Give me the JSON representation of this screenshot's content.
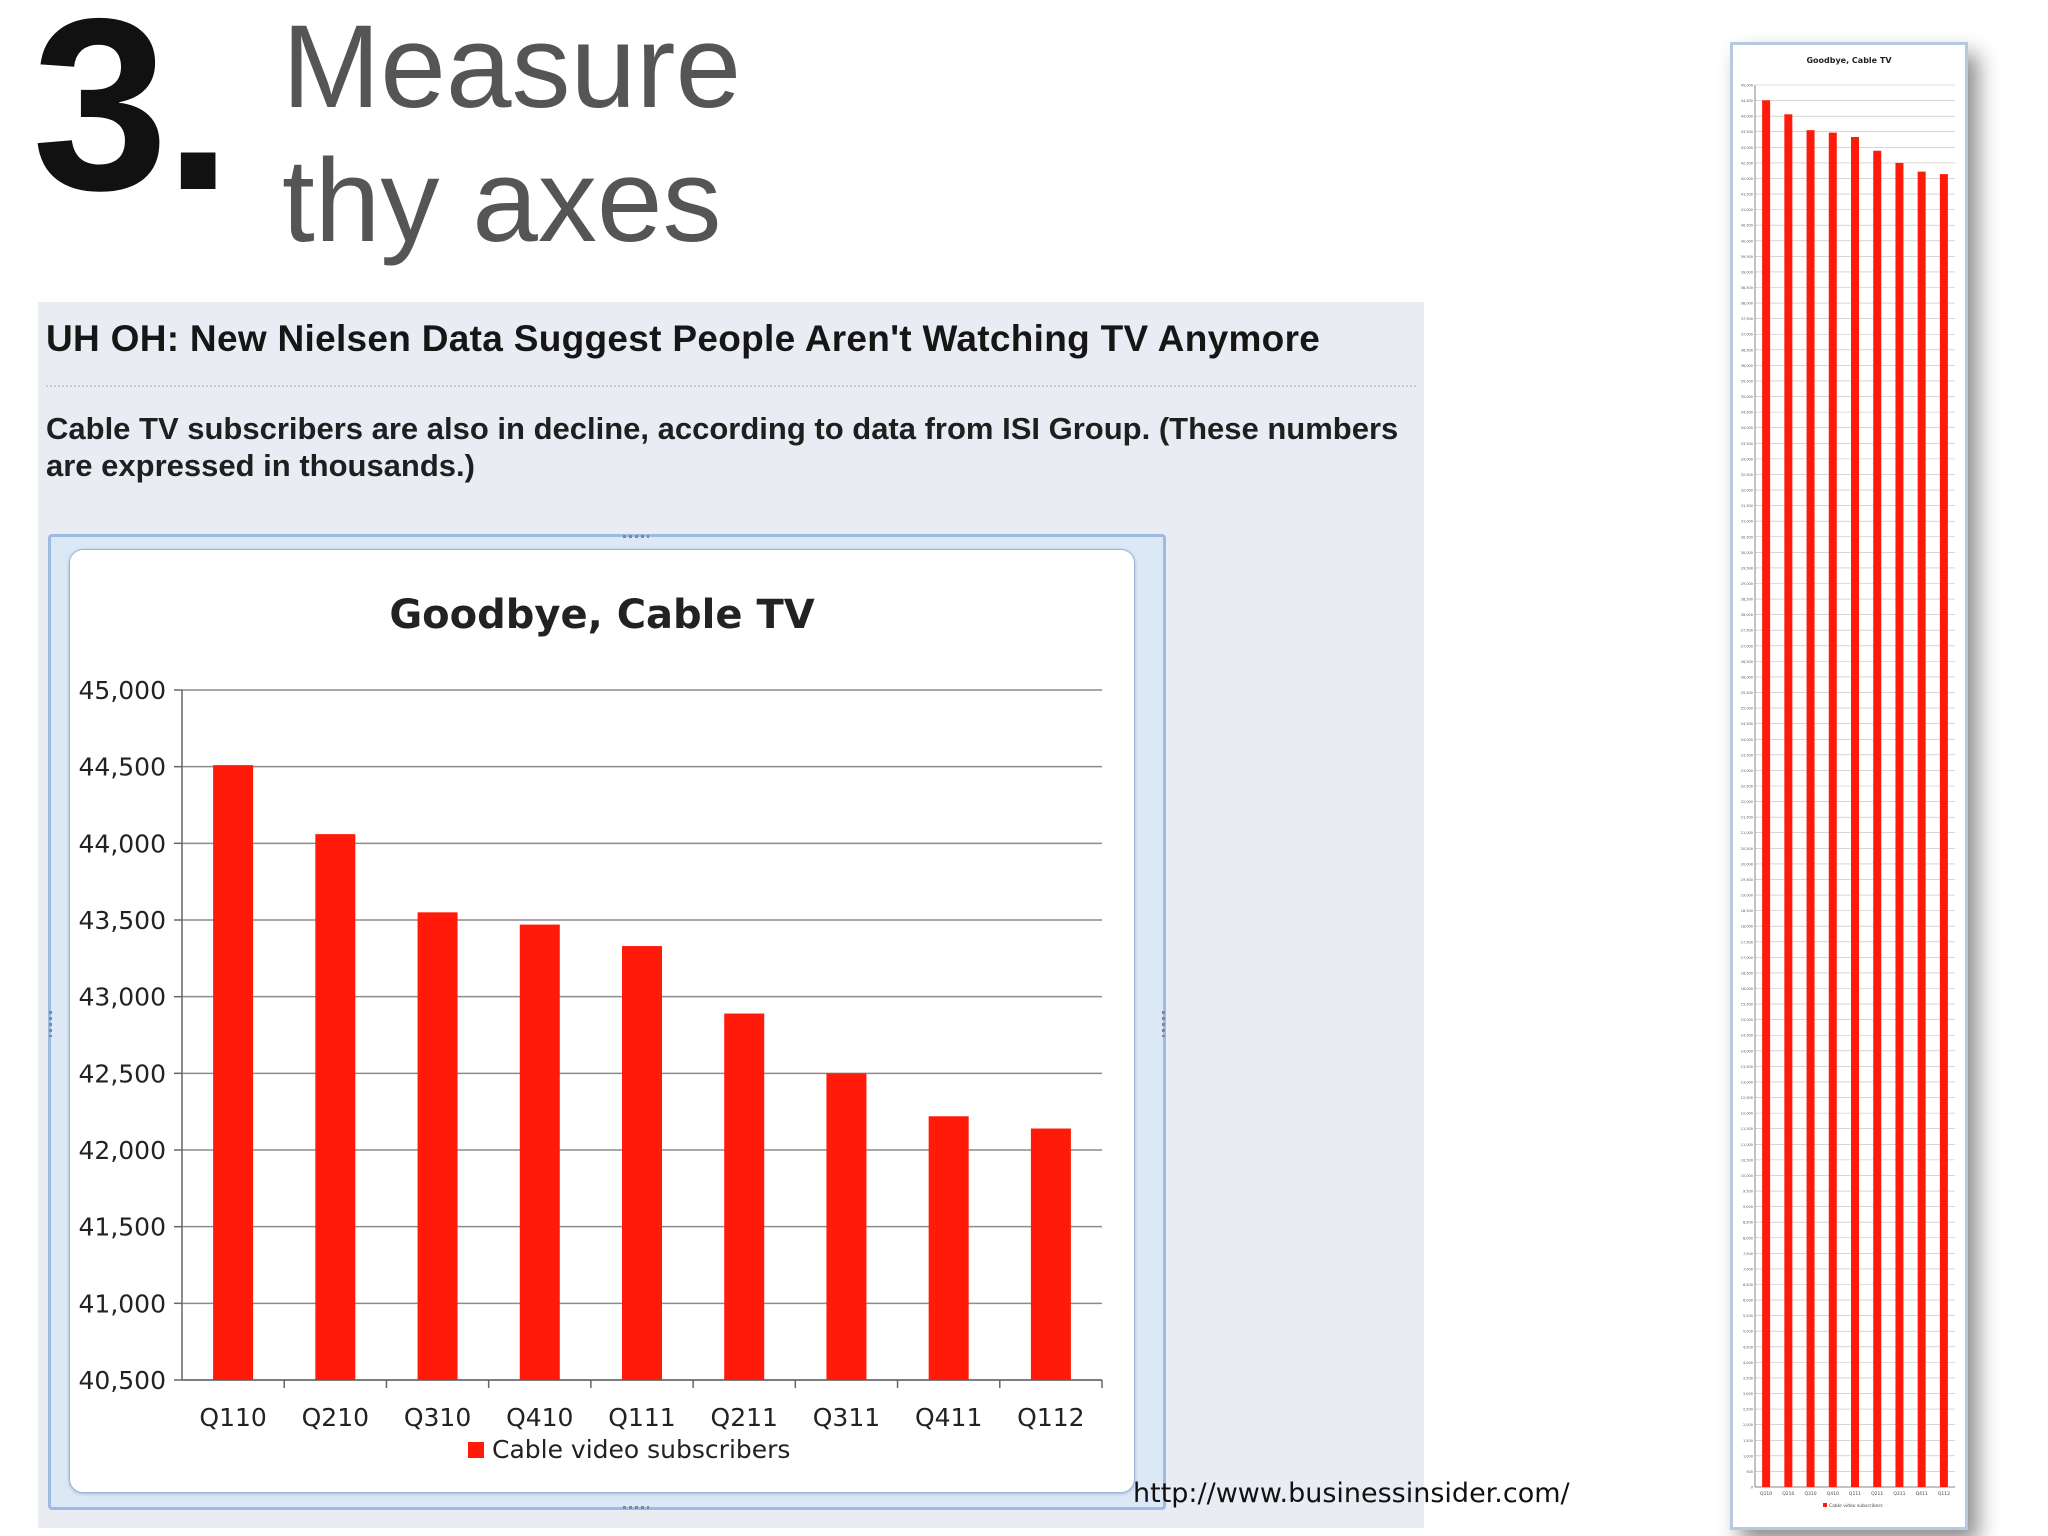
{
  "slide": {
    "number": "3.",
    "title_line1": "Measure",
    "title_line2": "thy axes"
  },
  "article": {
    "headline": "UH OH: New Nielsen Data Suggest People Aren't Watching TV Anymore",
    "subtitle": "Cable TV subscribers are also in decline, according to data from ISI Group. (These numbers are expressed in thousands.)"
  },
  "source_url": "http://www.businessinsider.com/",
  "chart_data": [
    {
      "type": "bar",
      "title": "Goodbye, Cable TV",
      "categories": [
        "Q110",
        "Q210",
        "Q310",
        "Q410",
        "Q111",
        "Q211",
        "Q311",
        "Q411",
        "Q112"
      ],
      "series": [
        {
          "name": "Cable video subscribers",
          "values": [
            44510,
            44060,
            43550,
            43470,
            43330,
            42890,
            42500,
            42220,
            42140
          ],
          "color": "#ff1a0a"
        }
      ],
      "xlabel": "",
      "ylabel": "",
      "ylim": [
        40500,
        45000
      ],
      "yticks": [
        40500,
        41000,
        41500,
        42000,
        42500,
        43000,
        43500,
        44000,
        44500,
        45000
      ],
      "ytick_labels": [
        "40,500",
        "41,000",
        "41,500",
        "42,000",
        "42,500",
        "43,000",
        "43,500",
        "44,000",
        "44,500",
        "45,000"
      ],
      "grid": true,
      "legend": "bottom"
    },
    {
      "type": "bar",
      "title": "Goodbye, Cable TV",
      "categories": [
        "Q110",
        "Q210",
        "Q310",
        "Q410",
        "Q111",
        "Q211",
        "Q311",
        "Q411",
        "Q112"
      ],
      "series": [
        {
          "name": "Cable video subscribers",
          "values": [
            44510,
            44060,
            43550,
            43470,
            43330,
            42890,
            42500,
            42220,
            42140
          ],
          "color": "#ff1a0a"
        }
      ],
      "ylim": [
        0,
        45000
      ],
      "grid": true,
      "legend": "bottom"
    }
  ]
}
